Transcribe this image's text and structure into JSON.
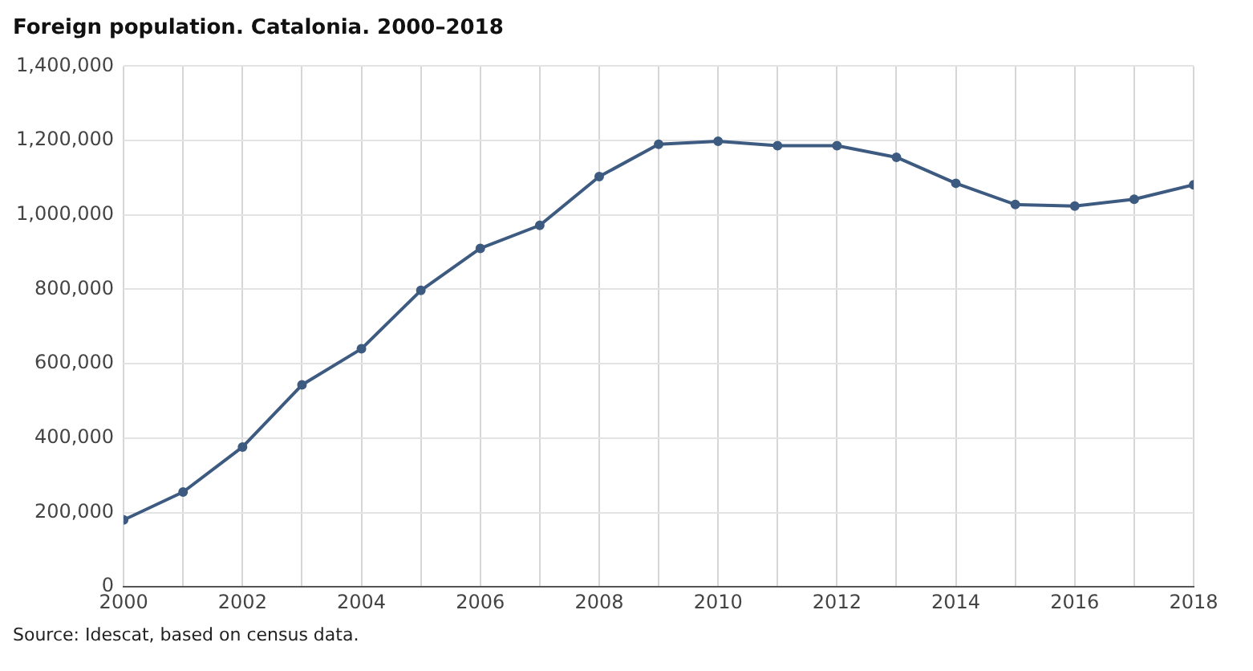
{
  "chart_data": {
    "type": "line",
    "title": "Foreign population. Catalonia. 2000–2018",
    "x": [
      2000,
      2001,
      2002,
      2003,
      2004,
      2005,
      2006,
      2007,
      2008,
      2009,
      2010,
      2011,
      2012,
      2013,
      2014,
      2015,
      2016,
      2017,
      2018
    ],
    "series": [
      {
        "color": "#3d5a80",
        "values": [
          180000,
          255000,
          376000,
          543000,
          640000,
          797000,
          910000,
          972000,
          1103000,
          1190000,
          1198000,
          1186000,
          1186000,
          1155000,
          1085000,
          1028000,
          1024000,
          1042000,
          1081000
        ]
      }
    ],
    "xlim": [
      2000,
      2018
    ],
    "xticks": [
      2000,
      {
        "value": 2001,
        "label": null
      },
      2002,
      {
        "value": 2003,
        "label": null
      },
      2004,
      {
        "value": 2005,
        "label": null
      },
      2006,
      {
        "value": 2007,
        "label": null
      },
      2008,
      {
        "value": 2009,
        "label": null
      },
      2010,
      {
        "value": 2011,
        "label": null
      },
      2012,
      {
        "value": 2013,
        "label": null
      },
      2014,
      {
        "value": 2015,
        "label": null
      },
      2016,
      {
        "value": 2017,
        "label": null
      },
      2018
    ],
    "ylim": [
      0,
      1400000
    ],
    "yticks": [
      {
        "value": 0,
        "label": "0"
      },
      {
        "value": 200000,
        "label": "200,000"
      },
      {
        "value": 400000,
        "label": "400,000"
      },
      {
        "value": 600000,
        "label": "600,000"
      },
      {
        "value": 800000,
        "label": "800,000"
      },
      {
        "value": 1000000,
        "label": "1,000,000"
      },
      {
        "value": 1200000,
        "label": "1,200,000"
      },
      {
        "value": 1400000,
        "label": "1,400,000"
      }
    ],
    "grid": true,
    "marker": "circle",
    "line_style": "solid",
    "annotations": [
      "Source: Idescat, based on census data."
    ]
  }
}
